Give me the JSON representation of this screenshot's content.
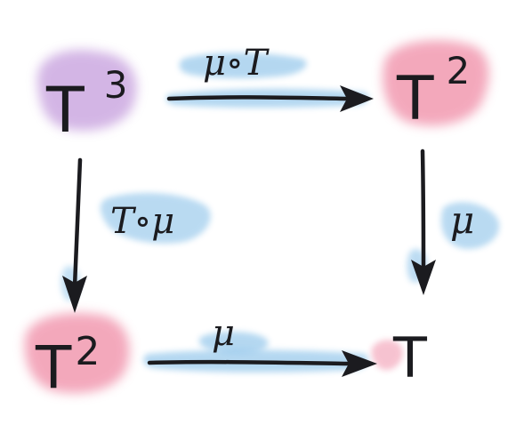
{
  "colors": {
    "ink": "#1b1b1f",
    "pink_wash": "#e8527a",
    "purple_wash": "#b07ad0",
    "blue_wash": "#5aa8e0"
  },
  "nodes": {
    "top_left": {
      "base": "T",
      "exp": "3"
    },
    "top_right": {
      "base": "T",
      "exp": "2"
    },
    "bottom_left": {
      "base": "T",
      "exp": "2"
    },
    "bottom_right": {
      "base": "T",
      "exp": ""
    }
  },
  "arrows": {
    "top": {
      "label": "μ∘T"
    },
    "left": {
      "label": "T∘μ"
    },
    "right": {
      "label": "μ"
    },
    "bottom": {
      "label": "μ"
    }
  }
}
